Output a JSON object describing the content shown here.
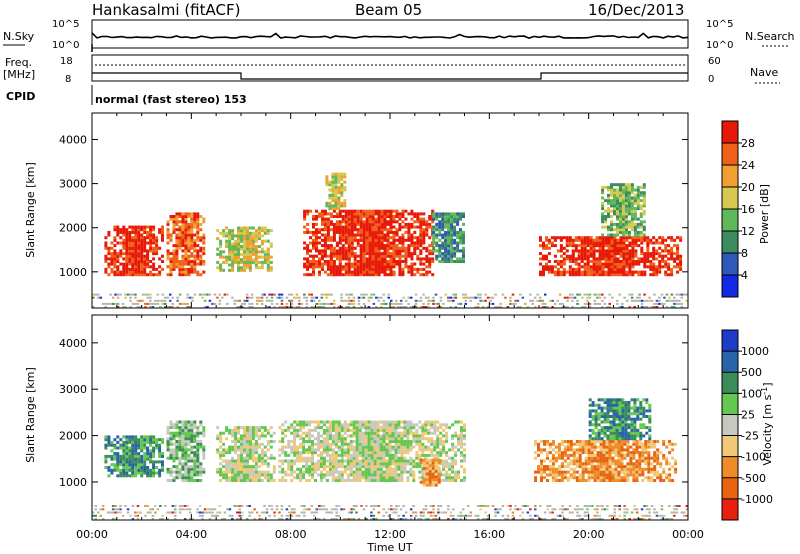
{
  "header": {
    "station": "Hankasalmi (fitACF)",
    "beam": "Beam 05",
    "date": "16/Dec/2013"
  },
  "noise_panel": {
    "left_label": "N.Sky",
    "right_label": "N.Search",
    "left_ticks": [
      "10^5",
      "10^0"
    ],
    "right_ticks": [
      "10^5",
      "10^0"
    ]
  },
  "freq_panel": {
    "left_label_1": "Freq.",
    "left_label_2": "[MHz]",
    "left_ticks": [
      "18",
      "8"
    ],
    "right_ticks": [
      "60",
      "0"
    ],
    "right_label": "Nave"
  },
  "cpid": {
    "label": "CPID",
    "text": "normal (fast stereo) 153"
  },
  "colors": {
    "power": [
      "#1428e6",
      "#2f58b8",
      "#3c8c60",
      "#5fb85a",
      "#d8c850",
      "#f0a030",
      "#f06018",
      "#e81808"
    ],
    "velocity": [
      "#1e3cc8",
      "#2a64a8",
      "#3c8c5a",
      "#64c850",
      "#c8c8c0",
      "#f0c878",
      "#f08c28",
      "#e86410",
      "#e82010"
    ],
    "ground_scatter": "#b4b4aa"
  },
  "chart_data": [
    {
      "type": "heatmap",
      "name_label": "Power",
      "ylabel": "Slant Range [km]",
      "ylim": [
        180,
        4600
      ],
      "y_ticks": [
        "1000",
        "2000",
        "3000",
        "4000"
      ],
      "x": [
        "00:00",
        "04:00",
        "08:00",
        "12:00",
        "16:00",
        "20:00",
        "00:00"
      ],
      "colorbar_label": "Power [dB]",
      "colorbar_ticks": [
        "4",
        "8",
        "12",
        "16",
        "20",
        "24",
        "28"
      ],
      "regions": [
        {
          "t0": 0.5,
          "t1": 2.8,
          "r0": 900,
          "r1": 2000,
          "level": 7
        },
        {
          "t0": 3.0,
          "t1": 4.5,
          "r0": 900,
          "r1": 2300,
          "level": 6
        },
        {
          "t0": 5.0,
          "t1": 7.2,
          "r0": 1000,
          "r1": 2000,
          "level": 4
        },
        {
          "t0": 8.5,
          "t1": 13.7,
          "r0": 900,
          "r1": 2400,
          "level": 7
        },
        {
          "t0": 9.4,
          "t1": 10.2,
          "r0": 2400,
          "r1": 3200,
          "level": 4
        },
        {
          "t0": 13.7,
          "t1": 15.0,
          "r0": 1200,
          "r1": 2300,
          "level": 2
        },
        {
          "t0": 18.0,
          "t1": 23.7,
          "r0": 900,
          "r1": 1800,
          "level": 7
        },
        {
          "t0": 20.5,
          "t1": 22.2,
          "r0": 1800,
          "r1": 3000,
          "level": 3
        }
      ]
    },
    {
      "type": "heatmap",
      "name_label": "Velocity",
      "ylabel": "Slant Range [km]",
      "ylim": [
        180,
        4600
      ],
      "y_ticks": [
        "1000",
        "2000",
        "3000",
        "4000"
      ],
      "x": [
        "00:00",
        "04:00",
        "08:00",
        "12:00",
        "16:00",
        "20:00",
        "00:00"
      ],
      "xlabel": "Time UT",
      "colorbar_label_main": "Velocity",
      "colorbar_label_unit": "[m s",
      "colorbar_label_exp": "-1",
      "colorbar_label_close": "]",
      "colorbar_ticks": [
        "1000",
        "500",
        "100",
        "25",
        "-25",
        "-100",
        "-500",
        "-1000"
      ],
      "regions": [
        {
          "t0": 0.5,
          "t1": 2.8,
          "r0": 1100,
          "r1": 2000,
          "level": 2
        },
        {
          "t0": 3.0,
          "t1": 4.5,
          "r0": 1000,
          "r1": 2300,
          "level": 3
        },
        {
          "t0": 5.0,
          "t1": 7.3,
          "r0": 1000,
          "r1": 2200,
          "level": 4
        },
        {
          "t0": 7.5,
          "t1": 15.0,
          "r0": 1000,
          "r1": 2300,
          "level": 4
        },
        {
          "t0": 13.2,
          "t1": 14.0,
          "r0": 900,
          "r1": 1500,
          "level": 6
        },
        {
          "t0": 17.8,
          "t1": 23.5,
          "r0": 1000,
          "r1": 1900,
          "level": 6
        },
        {
          "t0": 20.0,
          "t1": 22.5,
          "r0": 1900,
          "r1": 2800,
          "level": 2
        }
      ]
    }
  ]
}
